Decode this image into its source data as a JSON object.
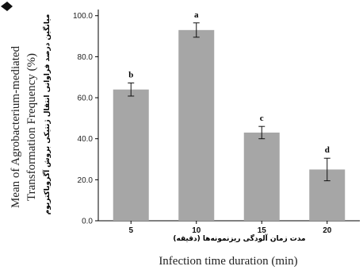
{
  "chart_data": {
    "type": "bar",
    "categories": [
      "5",
      "10",
      "15",
      "20"
    ],
    "values": [
      64.0,
      93.0,
      43.0,
      25.0
    ],
    "errors": [
      3.2,
      3.5,
      3.0,
      5.5
    ],
    "significance_letters": [
      "b",
      "a",
      "c",
      "d"
    ],
    "ylim": [
      0,
      100
    ],
    "yticks": [
      "0.0",
      "20.0",
      "40.0",
      "60.0",
      "80.0",
      "100.0"
    ],
    "ylabel_line1": "Mean of Agrobacterium-mediated",
    "ylabel_line2": "Transformation Frequency (%)",
    "ylabel_fa": "میانگین درصد فراوانی انتقال ژنتیکی بروش آگروباکتریوم",
    "xlabel_fa": "مدت زمان آلودگی ریزنمونه‌ها (دقیقه)",
    "xlabel": "Infection time duration (min)",
    "grid": false,
    "colors": {
      "bar": "#a6a6a6",
      "axis": "#000000"
    }
  }
}
